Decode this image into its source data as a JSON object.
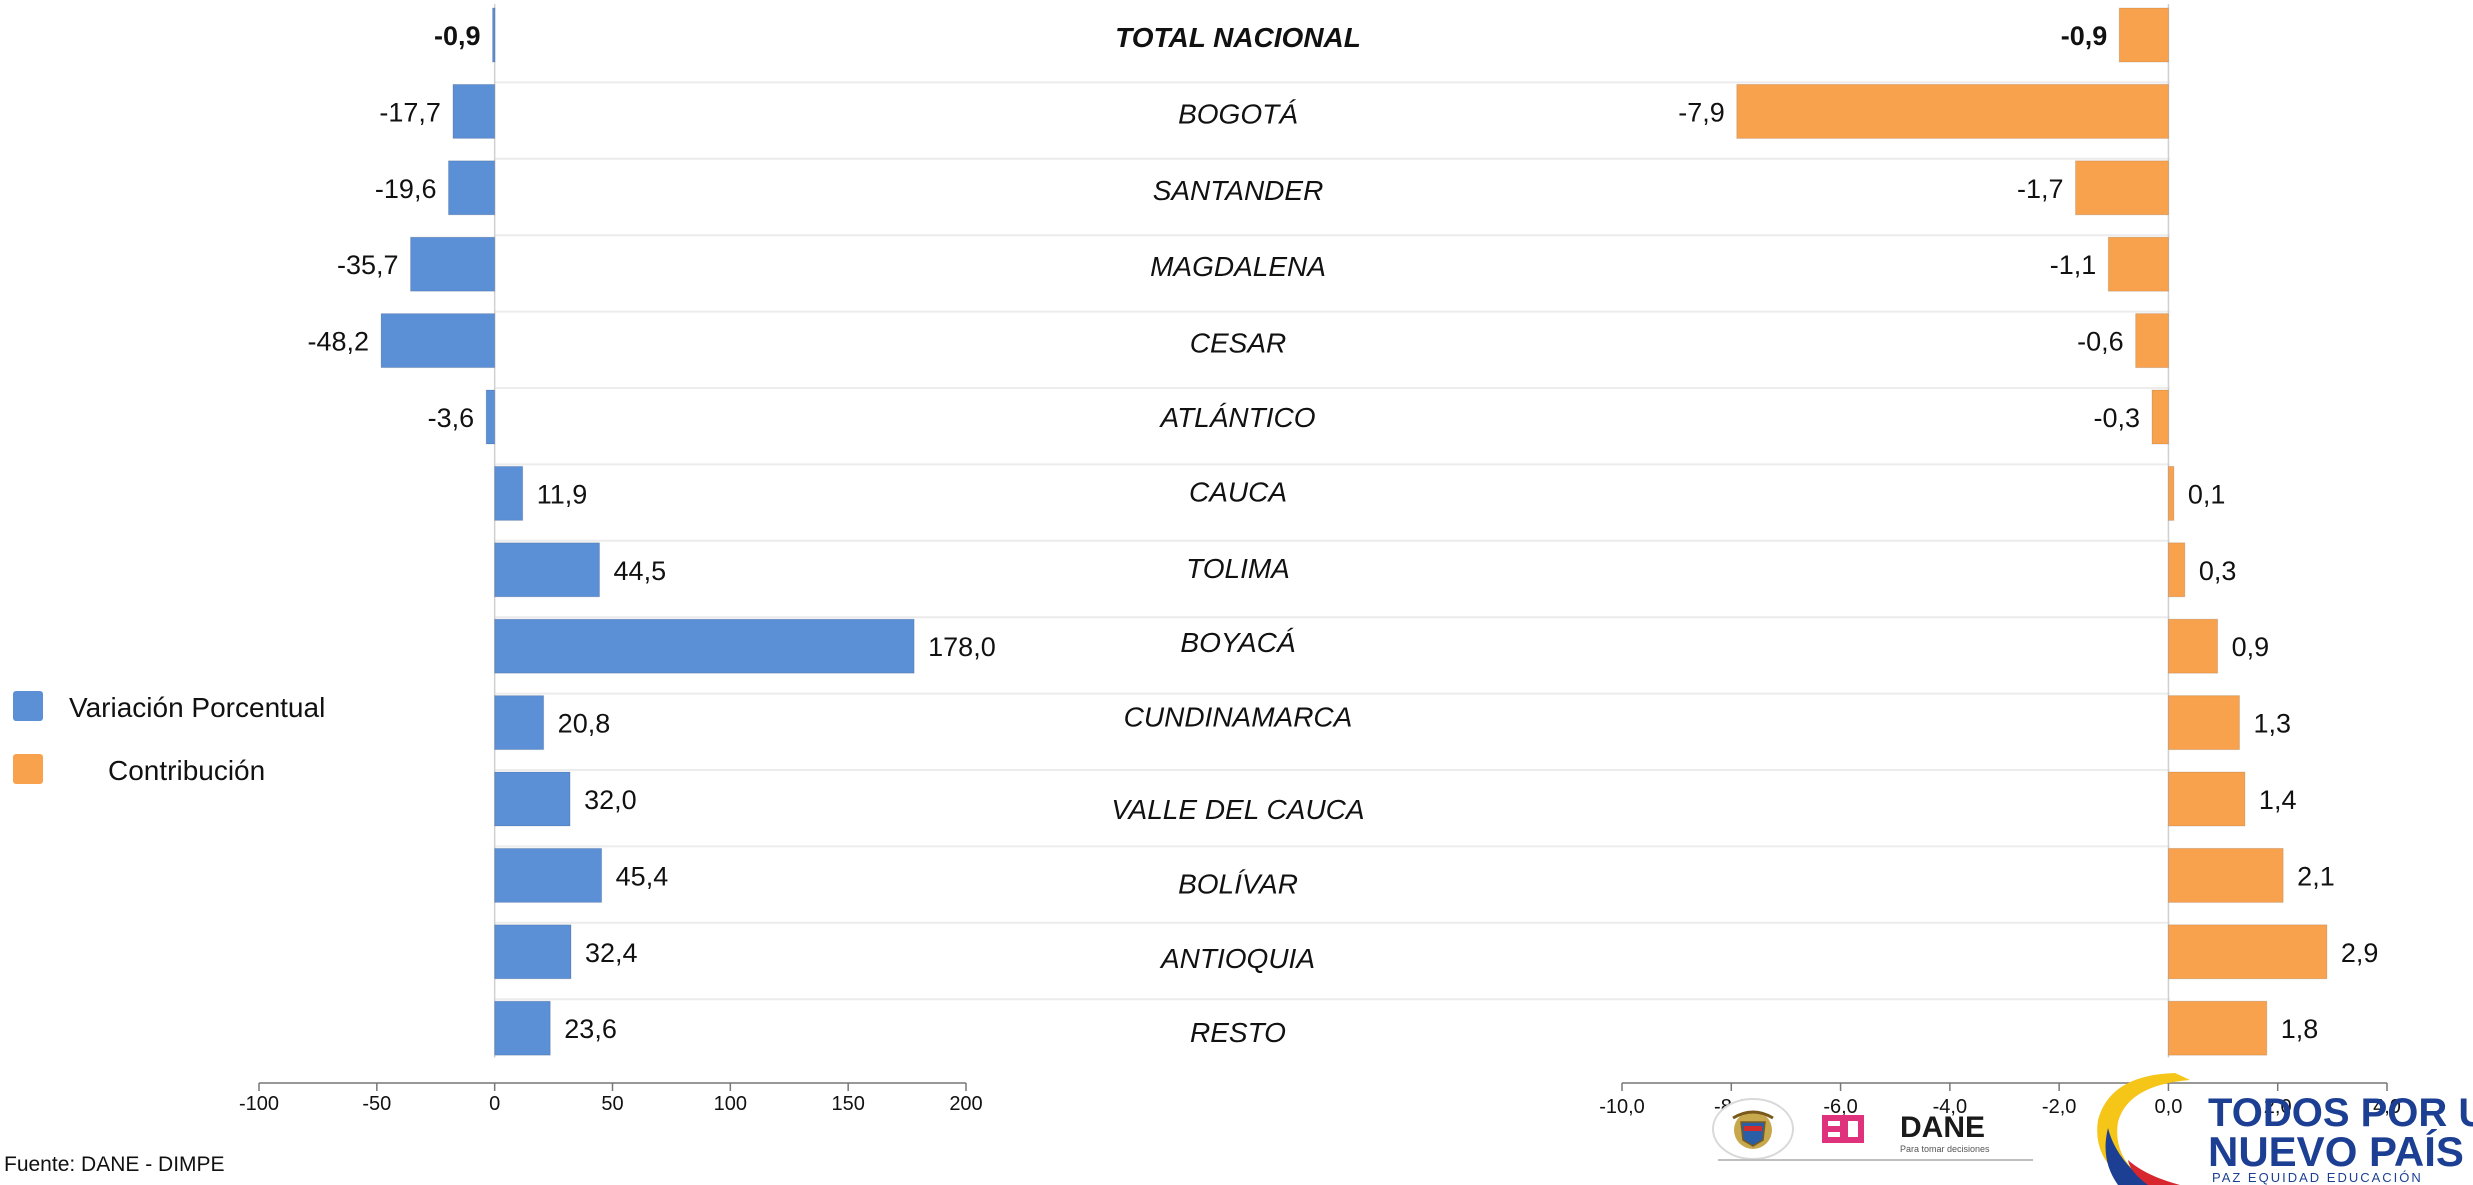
{
  "legend": {
    "variation_label": "Variación Porcentual",
    "contribution_label": "Contribución"
  },
  "colors": {
    "variation": "#5b8fd6",
    "contribution": "#f9a24e"
  },
  "source": "Fuente: DANE - DIMPE",
  "logos": {
    "dane_text": "DANE",
    "dane_tagline": "Para tomar decisiones",
    "slogan_line1": "TODOS POR UN",
    "slogan_line2": "NUEVO PAÍS",
    "slogan_line3": "PAZ   EQUIDAD   EDUCACIÓN"
  },
  "chart_data": [
    {
      "type": "bar",
      "orientation": "horizontal",
      "series": [
        {
          "name": "Variación Porcentual",
          "values": [
            -0.9,
            -17.7,
            -19.6,
            -35.7,
            -48.2,
            -3.6,
            11.9,
            44.5,
            178.0,
            20.8,
            32.0,
            45.4,
            32.4,
            23.6
          ]
        }
      ],
      "categories": [
        "TOTAL NACIONAL",
        "BOGOTÁ",
        "SANTANDER",
        "MAGDALENA",
        "CESAR",
        "ATLÁNTICO",
        "CAUCA",
        "TOLIMA",
        "BOYACÁ",
        "CUNDINAMARCA",
        "VALLE DEL CAUCA",
        "BOLÍVAR",
        "ANTIOQUIA",
        "RESTO"
      ],
      "value_labels": [
        "-0,9",
        "-17,7",
        "-19,6",
        "-35,7",
        "-48,2",
        "-3,6",
        "11,9",
        "44,5",
        "178,0",
        "20,8",
        "32,0",
        "45,4",
        "32,4",
        "23,6"
      ],
      "xlim": [
        -100,
        200
      ],
      "xticks": [
        -100,
        -50,
        0,
        50,
        100,
        150,
        200
      ],
      "xtick_labels": [
        "-100",
        "-50",
        "0",
        "50",
        "100",
        "150",
        "200"
      ],
      "title": "",
      "xlabel": "",
      "ylabel": ""
    },
    {
      "type": "bar",
      "orientation": "horizontal",
      "series": [
        {
          "name": "Contribución",
          "values": [
            -0.9,
            -7.9,
            -1.7,
            -1.1,
            -0.6,
            -0.3,
            0.1,
            0.3,
            0.9,
            1.3,
            1.4,
            2.1,
            2.9,
            1.8
          ]
        }
      ],
      "categories": [
        "TOTAL NACIONAL",
        "BOGOTÁ",
        "SANTANDER",
        "MAGDALENA",
        "CESAR",
        "ATLÁNTICO",
        "CAUCA",
        "TOLIMA",
        "BOYACÁ",
        "CUNDINAMARCA",
        "VALLE DEL CAUCA",
        "BOLÍVAR",
        "ANTIOQUIA",
        "RESTO"
      ],
      "value_labels": [
        "-0,9",
        "-7,9",
        "-1,7",
        "-1,1",
        "-0,6",
        "-0,3",
        "0,1",
        "0,3",
        "0,9",
        "1,3",
        "1,4",
        "2,1",
        "2,9",
        "1,8"
      ],
      "xlim": [
        -10,
        4
      ],
      "xticks": [
        -10,
        -8,
        -6,
        -4,
        -2,
        0,
        2,
        4
      ],
      "xtick_labels": [
        "-10,0",
        "-8,0",
        "-6,0",
        "-4,0",
        "-2,0",
        "0,0",
        "2,0",
        "4,0"
      ],
      "title": "",
      "xlabel": "",
      "ylabel": ""
    }
  ]
}
